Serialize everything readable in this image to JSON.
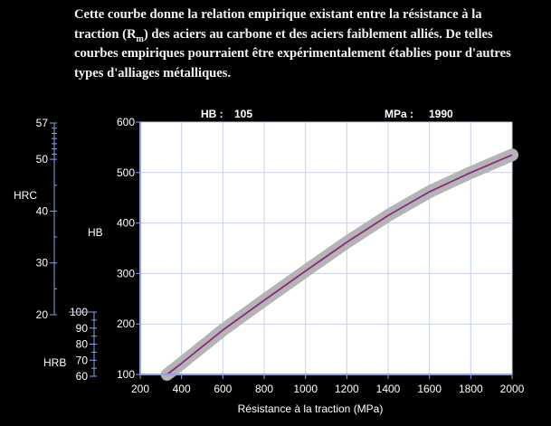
{
  "intro": {
    "line1": "Cette courbe donne la relation empirique existant entre la résistance à la",
    "line2_before": "traction (R",
    "line2_sub": "m",
    "line2_after": ") des aciers au carbone et des aciers faiblement alliés.  De telles",
    "line3": "courbes empiriques pourraient être expérimentalement établies pour d'autres",
    "line4": "types d'alliages métalliques."
  },
  "readout": {
    "hb_label": "HB :",
    "hb_value": "105",
    "mpa_label": "MPa :",
    "mpa_value": "1990"
  },
  "colors": {
    "background": "#000000",
    "plot_area": "#ffffff",
    "grid": "#c8d0e8",
    "band": "#b4b4b4",
    "curve": "#8a2a7e",
    "axis_lines": "#8ea2e8",
    "text": "#ffffff"
  },
  "chart_data": {
    "type": "line",
    "title": "",
    "xlabel": "Résistance à la traction (MPa)",
    "ylabel": "HB",
    "xlim": [
      200,
      2000
    ],
    "ylim": [
      100,
      600
    ],
    "x_ticks": [
      "200",
      "400",
      "600",
      "800",
      "1000",
      "1200",
      "1400",
      "1600",
      "1800",
      "2000"
    ],
    "y_ticks": [
      "100",
      "200",
      "300",
      "400",
      "500",
      "600"
    ],
    "grid": true,
    "series": [
      {
        "x": [
          330,
          400,
          600,
          800,
          1000,
          1200,
          1400,
          1600,
          1800,
          2000
        ],
        "y": [
          100,
          122,
          188,
          247,
          305,
          362,
          415,
          462,
          500,
          535
        ]
      }
    ],
    "secondary_scales": {
      "hrc": {
        "label": "HRC",
        "ticks": [
          "57",
          "50",
          "40",
          "30",
          "20"
        ],
        "range": [
          20,
          57
        ]
      },
      "hrb": {
        "label": "HRB",
        "ticks": [
          "100",
          "90",
          "80",
          "70",
          "60"
        ],
        "range": [
          60,
          100
        ]
      }
    }
  }
}
